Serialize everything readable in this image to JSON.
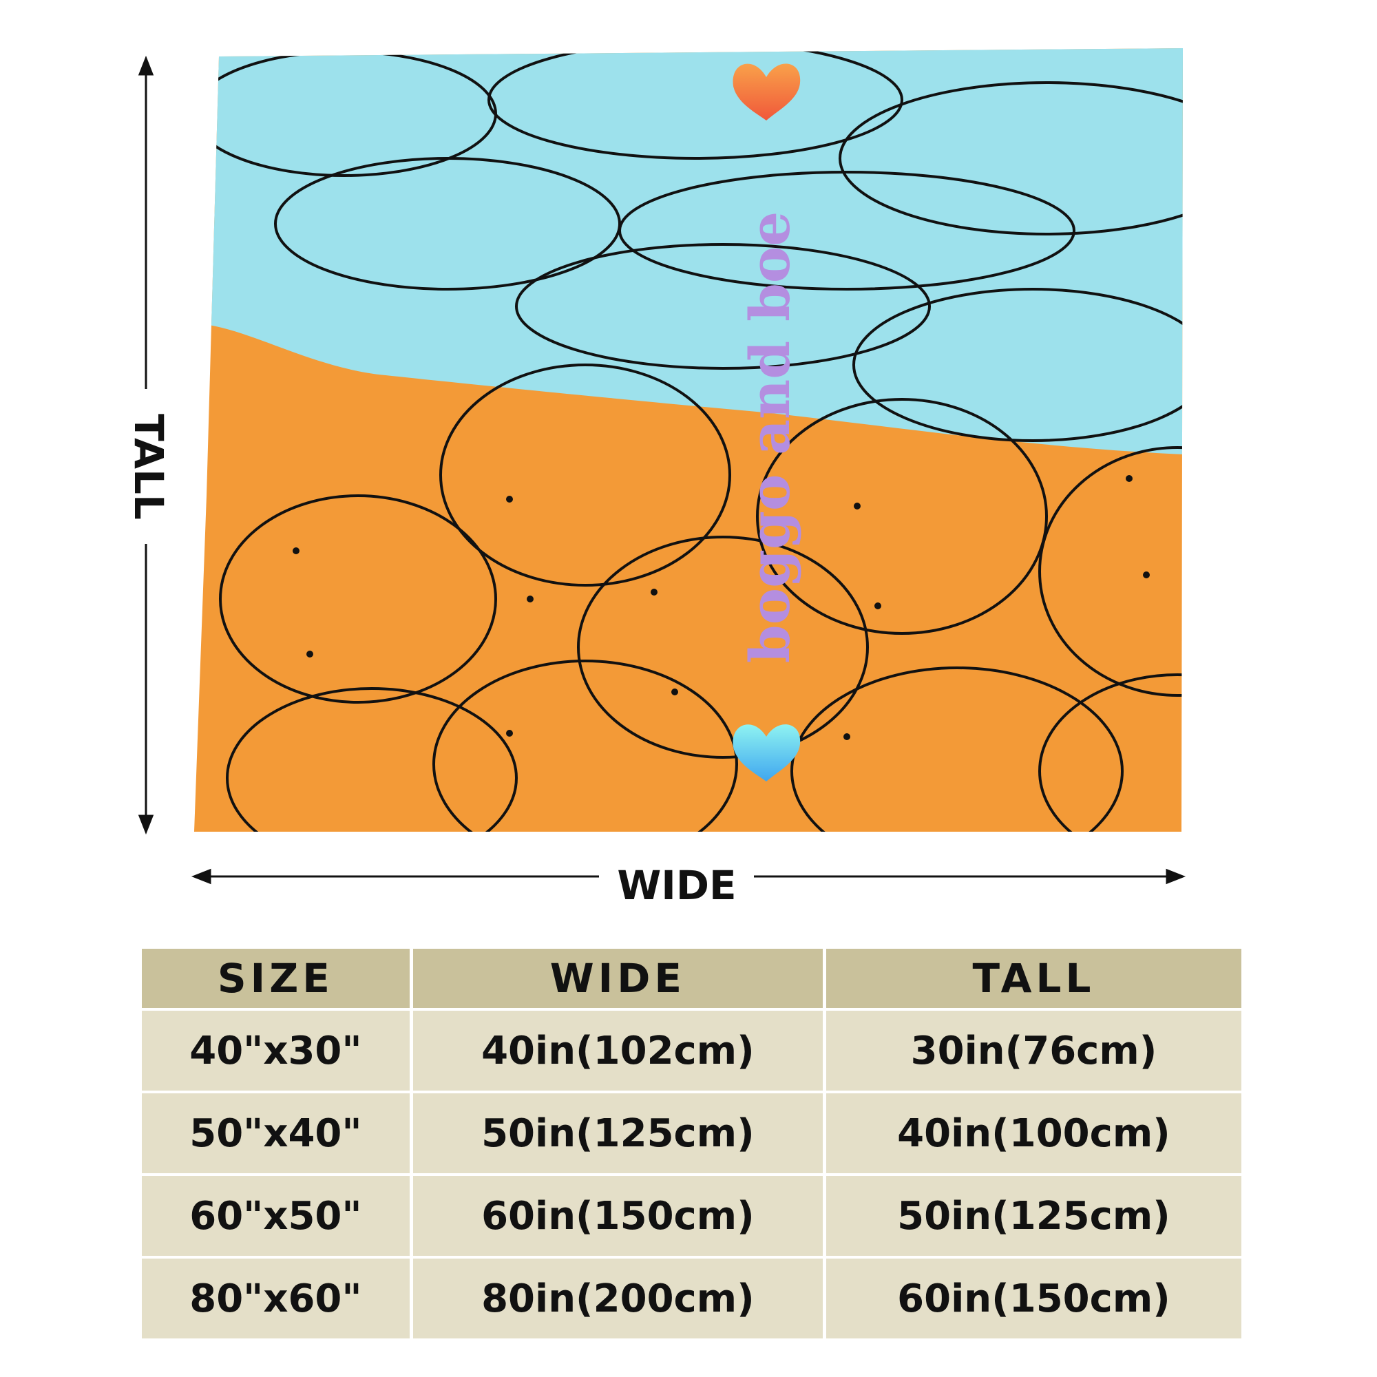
{
  "dimension_labels": {
    "tall": "TALL",
    "wide": "WIDE"
  },
  "blanket_text": "boggo and boe",
  "table": {
    "header": [
      "SIZE",
      "WIDE",
      "TALL"
    ],
    "rows": [
      [
        "40\"x30\"",
        "40in(102cm)",
        "30in(76cm)"
      ],
      [
        "50\"x40\"",
        "50in(125cm)",
        "40in(100cm)"
      ],
      [
        "60\"x50\"",
        "60in(150cm)",
        "50in(125cm)"
      ],
      [
        "80\"x60\"",
        "80in(200cm)",
        "60in(150cm)"
      ]
    ]
  }
}
